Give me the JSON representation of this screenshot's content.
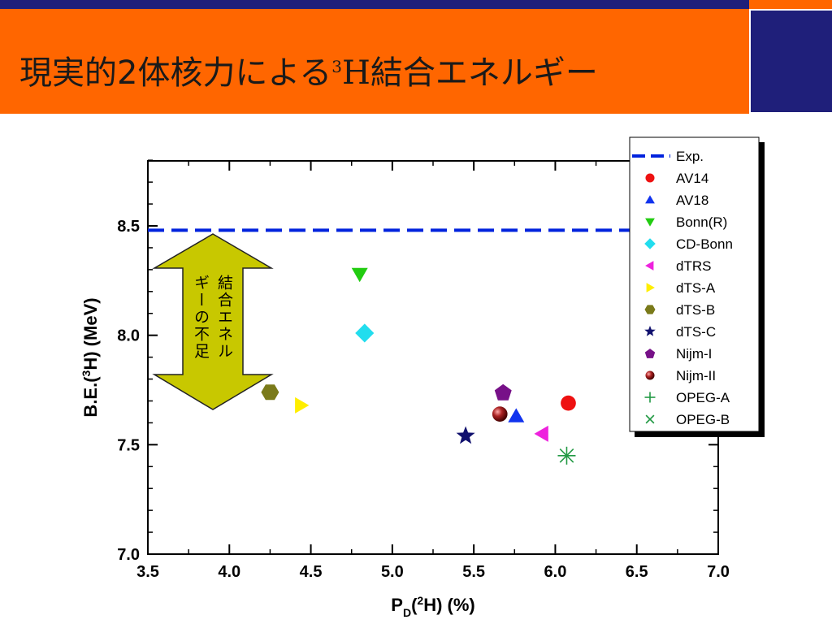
{
  "slide": {
    "title_pre": "現実的2体核力による",
    "title_sup": "3",
    "title_h": "H",
    "title_post": "結合エネルギー"
  },
  "colors": {
    "header_orange": "#ff6600",
    "header_navy": "#1f1f7a",
    "arrow_fill": "#c8c800"
  },
  "chart_data": {
    "type": "scatter",
    "xlabel_parts": {
      "p": "P",
      "sub": "D",
      "open": "(",
      "sup": "2",
      "rest": "H)  (%)"
    },
    "ylabel_parts": {
      "pre": "B.E.(",
      "sup": "3",
      "rest": "H) (MeV)"
    },
    "xlim": [
      3.5,
      7.0
    ],
    "ylim": [
      7.0,
      8.8
    ],
    "xticks": [
      "3.5",
      "4.0",
      "4.5",
      "5.0",
      "5.5",
      "6.0",
      "6.5",
      "7.0"
    ],
    "yticks": [
      "7.0",
      "7.5",
      "8.0",
      "8.5"
    ],
    "reference_line": {
      "name": "Exp.",
      "y": 8.48,
      "color": "#0022dd"
    },
    "annotation": {
      "line1": "結合エネル",
      "line2": "ギーの不足"
    },
    "series": [
      {
        "name": "AV14",
        "marker": "circle",
        "color": "#ee1111",
        "x": 6.08,
        "y": 7.69
      },
      {
        "name": "AV18",
        "marker": "triangle-up",
        "color": "#1133ee",
        "x": 5.76,
        "y": 7.63
      },
      {
        "name": "Bonn(R)",
        "marker": "triangle-down",
        "color": "#22cc11",
        "x": 4.8,
        "y": 8.28
      },
      {
        "name": "CD-Bonn",
        "marker": "diamond",
        "color": "#22ddee",
        "x": 4.83,
        "y": 8.01
      },
      {
        "name": "dTRS",
        "marker": "triangle-left",
        "color": "#ee22dd",
        "x": 5.92,
        "y": 7.55
      },
      {
        "name": "dTS-A",
        "marker": "triangle-right",
        "color": "#ffee00",
        "x": 4.44,
        "y": 7.68
      },
      {
        "name": "dTS-B",
        "marker": "hexagon",
        "color": "#7a7a1a",
        "x": 4.25,
        "y": 7.74
      },
      {
        "name": "dTS-C",
        "marker": "star",
        "color": "#11116e",
        "x": 5.45,
        "y": 7.54
      },
      {
        "name": "Nijm-I",
        "marker": "pentagon",
        "color": "#771188",
        "x": 5.68,
        "y": 7.74
      },
      {
        "name": "Nijm-II",
        "marker": "sphere",
        "color": "#8a1111",
        "x": 5.66,
        "y": 7.64
      },
      {
        "name": "OPEG-A",
        "marker": "plus",
        "color": "#229944",
        "x": 6.07,
        "y": 7.45
      },
      {
        "name": "OPEG-B",
        "marker": "cross",
        "color": "#229944",
        "x": 6.07,
        "y": 7.45
      }
    ]
  }
}
